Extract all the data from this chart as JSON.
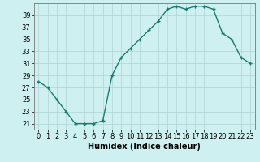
{
  "x": [
    0,
    1,
    2,
    3,
    4,
    5,
    6,
    7,
    8,
    9,
    10,
    11,
    12,
    13,
    14,
    15,
    16,
    17,
    18,
    19,
    20,
    21,
    22,
    23
  ],
  "y": [
    28,
    27,
    25,
    23,
    21,
    21,
    21,
    21.5,
    29,
    32,
    33.5,
    35,
    36.5,
    38,
    40,
    40.5,
    40,
    40.5,
    40.5,
    40,
    36,
    35,
    32,
    31
  ],
  "line_color": "#1a7a6e",
  "marker": "+",
  "marker_size": 3,
  "marker_linewidth": 1.0,
  "bg_color": "#cff0f0",
  "grid_color": "#aed4d4",
  "xlabel": "Humidex (Indice chaleur)",
  "xlim": [
    -0.5,
    23.5
  ],
  "ylim": [
    20,
    41
  ],
  "yticks": [
    21,
    23,
    25,
    27,
    29,
    31,
    33,
    35,
    37,
    39
  ],
  "xticks": [
    0,
    1,
    2,
    3,
    4,
    5,
    6,
    7,
    8,
    9,
    10,
    11,
    12,
    13,
    14,
    15,
    16,
    17,
    18,
    19,
    20,
    21,
    22,
    23
  ],
  "xlabel_fontsize": 7,
  "tick_fontsize": 6,
  "line_width": 1.0
}
